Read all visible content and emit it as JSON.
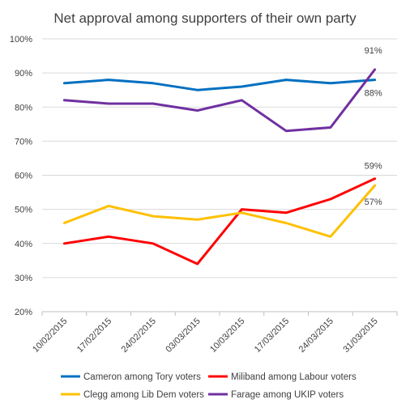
{
  "chart_data": {
    "type": "line",
    "title": "Net approval among supporters of their own party",
    "categories": [
      "10/02/2015",
      "17/02/2015",
      "24/02/2015",
      "03/03/2015",
      "10/03/2015",
      "17/03/2015",
      "24/03/2015",
      "31/03/2015"
    ],
    "ylim": [
      0.2,
      1.0
    ],
    "yticks": [
      "20%",
      "30%",
      "40%",
      "50%",
      "60%",
      "70%",
      "80%",
      "90%",
      "100%"
    ],
    "grid": true,
    "legend_position": "bottom",
    "series": [
      {
        "name": "Cameron among Tory voters",
        "color": "#0070c0",
        "values": [
          0.87,
          0.88,
          0.87,
          0.85,
          0.86,
          0.88,
          0.87,
          0.88
        ]
      },
      {
        "name": "Miliband among Labour voters",
        "color": "#ff0000",
        "values": [
          0.4,
          0.42,
          0.4,
          0.34,
          0.5,
          0.49,
          0.53,
          0.59
        ]
      },
      {
        "name": "Clegg among Lib Dem voters",
        "color": "#ffc000",
        "values": [
          0.46,
          0.51,
          0.48,
          0.47,
          0.49,
          0.46,
          0.42,
          0.57
        ]
      },
      {
        "name": "Farage among UKIP voters",
        "color": "#7030a0",
        "values": [
          0.82,
          0.81,
          0.81,
          0.79,
          0.82,
          0.73,
          0.74,
          0.91
        ]
      }
    ],
    "annotations": [
      {
        "text": "91%",
        "series": 3
      },
      {
        "text": "88%",
        "series": 0
      },
      {
        "text": "59%",
        "series": 1
      },
      {
        "text": "57%",
        "series": 2
      }
    ]
  }
}
